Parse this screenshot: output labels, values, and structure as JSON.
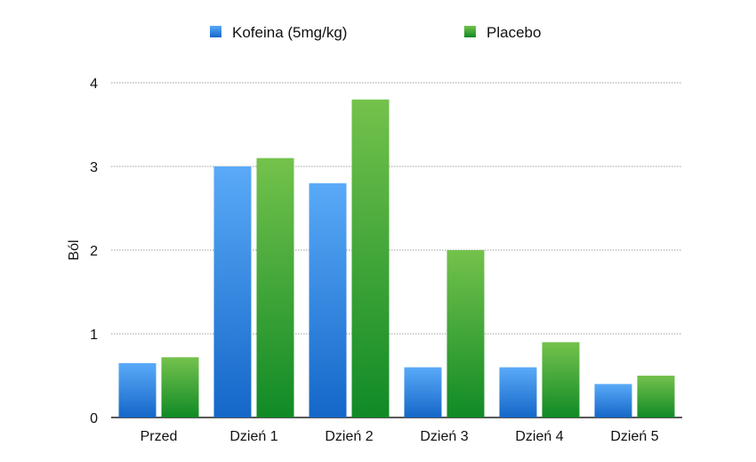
{
  "chart_data": {
    "type": "bar",
    "title": "",
    "xlabel": "",
    "ylabel": "Ból",
    "ylim": [
      0,
      4
    ],
    "yticks": [
      "0",
      "1",
      "2",
      "3",
      "4"
    ],
    "grid": true,
    "legend_position": "top",
    "categories": [
      "Przed",
      "Dzień 1",
      "Dzień 2",
      "Dzień 3",
      "Dzień 4",
      "Dzień 5"
    ],
    "series": [
      {
        "name": "Kofeina (5mg/kg)",
        "values": [
          0.65,
          3.0,
          2.8,
          0.6,
          0.6,
          0.4
        ],
        "color": "#1f78d8",
        "color_light": "#58a8f8"
      },
      {
        "name": "Placebo",
        "values": [
          0.72,
          3.1,
          3.8,
          2.0,
          0.9,
          0.5
        ],
        "color": "#1a8e2a",
        "color_light": "#72c24a"
      }
    ]
  }
}
